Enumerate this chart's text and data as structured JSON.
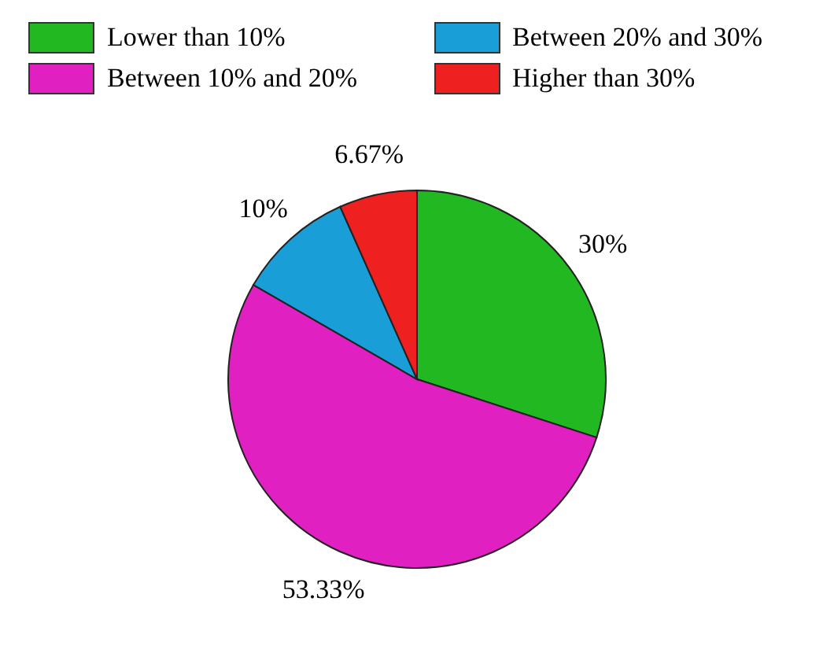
{
  "chart_data": {
    "type": "pie",
    "categories": [
      "Lower than 10%",
      "Between 10% and 20%",
      "Between 20% and 30%",
      "Higher than 30%"
    ],
    "values": [
      30,
      53.33,
      10,
      6.67
    ],
    "colors": [
      "#22b822",
      "#e020c0",
      "#1a9ed8",
      "#ee2020"
    ],
    "value_labels": [
      "30%",
      "53.33%",
      "10%",
      "6.67%"
    ],
    "legend": "top"
  }
}
